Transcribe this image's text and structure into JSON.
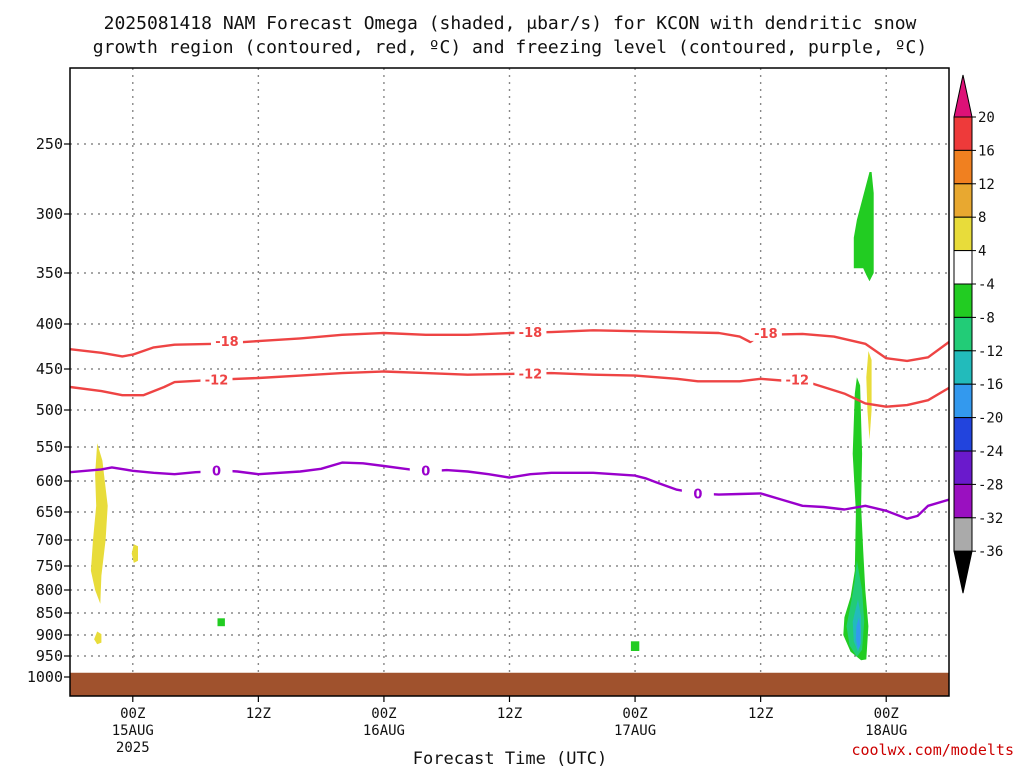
{
  "title": {
    "line1": "2025081418 NAM Forecast Omega (shaded, μbar/s) for KCON with dendritic snow",
    "line2": "growth region (contoured, red, ºC) and freezing level (contoured, purple, ºC)"
  },
  "credit": "coolwx.com/modelts",
  "colors": {
    "dgz": "#ee4444",
    "freezing": "#9900cc",
    "ground": "#a0522d",
    "grid": "#888888"
  },
  "chart_data": {
    "type": "heatmap",
    "xlabel": "Forecast Time (UTC)",
    "x_unit": "hours after 2025081418",
    "xlim": [
      0,
      84
    ],
    "y_axis": "pressure (hPa), decreasing upward",
    "ylim": [
      1000,
      200
    ],
    "y_ticks": [
      250,
      300,
      350,
      400,
      450,
      500,
      550,
      600,
      650,
      700,
      750,
      800,
      850,
      900,
      950,
      1000
    ],
    "x_ticks": [
      {
        "hour": 6,
        "label": "00Z",
        "date": "15AUG",
        "year": "2025"
      },
      {
        "hour": 18,
        "label": "12Z",
        "date": "",
        "year": ""
      },
      {
        "hour": 30,
        "label": "00Z",
        "date": "16AUG",
        "year": ""
      },
      {
        "hour": 42,
        "label": "12Z",
        "date": "",
        "year": ""
      },
      {
        "hour": 54,
        "label": "00Z",
        "date": "17AUG",
        "year": ""
      },
      {
        "hour": 66,
        "label": "12Z",
        "date": "",
        "year": ""
      },
      {
        "hour": 78,
        "label": "00Z",
        "date": "18AUG",
        "year": ""
      }
    ],
    "colorbar": {
      "labels": [
        "20",
        "16",
        "12",
        "8",
        "4",
        "-4",
        "-8",
        "-12",
        "-16",
        "-20",
        "-24",
        "-28",
        "-32",
        "-36"
      ],
      "bins": [
        {
          "color": "#ee3a3a"
        },
        {
          "color": "#f08020"
        },
        {
          "color": "#e8a830"
        },
        {
          "color": "#e8dc3a"
        },
        {
          "color": "#ffffff"
        },
        {
          "color": "#22cc22"
        },
        {
          "color": "#22cc77"
        },
        {
          "color": "#22bbbb"
        },
        {
          "color": "#3399ee"
        },
        {
          "color": "#2244dd"
        },
        {
          "color": "#6a1acc"
        },
        {
          "color": "#9a10c0"
        },
        {
          "color": "#aaaaaa"
        }
      ],
      "top_arrow": "#dd1177",
      "bottom_arrow": "#000000"
    },
    "contours": [
      {
        "label": "-18",
        "color": "#ee4444",
        "points": [
          [
            0,
            428
          ],
          [
            3,
            432
          ],
          [
            5,
            436
          ],
          [
            6,
            434
          ],
          [
            8,
            426
          ],
          [
            10,
            423
          ],
          [
            14,
            422
          ],
          [
            18,
            419
          ],
          [
            22,
            416
          ],
          [
            26,
            412
          ],
          [
            30,
            410
          ],
          [
            34,
            412
          ],
          [
            38,
            412
          ],
          [
            42,
            410
          ],
          [
            46,
            409
          ],
          [
            50,
            407
          ],
          [
            54,
            408
          ],
          [
            58,
            409
          ],
          [
            62,
            410
          ],
          [
            64,
            414
          ],
          [
            65,
            420
          ],
          [
            66,
            412
          ],
          [
            70,
            411
          ],
          [
            73,
            414
          ],
          [
            76,
            422
          ],
          [
            78,
            438
          ],
          [
            80,
            441
          ],
          [
            82,
            437
          ],
          [
            84,
            420
          ]
        ],
        "label_at": [
          [
            15,
            420
          ],
          [
            44,
            410
          ],
          [
            66.5,
            411
          ]
        ]
      },
      {
        "label": "-12",
        "color": "#ee4444",
        "points": [
          [
            0,
            472
          ],
          [
            3,
            477
          ],
          [
            5,
            482
          ],
          [
            7,
            482
          ],
          [
            9,
            472
          ],
          [
            10,
            466
          ],
          [
            14,
            463
          ],
          [
            18,
            461
          ],
          [
            22,
            458
          ],
          [
            26,
            455
          ],
          [
            30,
            453
          ],
          [
            34,
            455
          ],
          [
            38,
            457
          ],
          [
            42,
            456
          ],
          [
            46,
            455
          ],
          [
            50,
            457
          ],
          [
            54,
            458
          ],
          [
            58,
            462
          ],
          [
            60,
            465
          ],
          [
            62,
            465
          ],
          [
            64,
            465
          ],
          [
            66,
            462
          ],
          [
            68,
            464
          ],
          [
            70,
            464
          ],
          [
            72,
            472
          ],
          [
            74,
            480
          ],
          [
            76,
            492
          ],
          [
            78,
            496
          ],
          [
            80,
            494
          ],
          [
            82,
            488
          ],
          [
            84,
            473
          ]
        ],
        "label_at": [
          [
            14,
            464
          ],
          [
            44,
            457
          ],
          [
            69.5,
            464
          ]
        ]
      },
      {
        "label": "0",
        "color": "#9900cc",
        "points": [
          [
            0,
            587
          ],
          [
            3,
            583
          ],
          [
            4,
            580
          ],
          [
            6,
            585
          ],
          [
            8,
            588
          ],
          [
            10,
            590
          ],
          [
            12,
            587
          ],
          [
            15,
            585
          ],
          [
            16,
            586
          ],
          [
            18,
            590
          ],
          [
            22,
            586
          ],
          [
            24,
            582
          ],
          [
            26,
            573
          ],
          [
            28,
            574
          ],
          [
            30,
            578
          ],
          [
            32,
            582
          ],
          [
            34,
            586
          ],
          [
            36,
            584
          ],
          [
            38,
            586
          ],
          [
            40,
            590
          ],
          [
            42,
            595
          ],
          [
            44,
            590
          ],
          [
            46,
            588
          ],
          [
            50,
            588
          ],
          [
            52,
            590
          ],
          [
            54,
            592
          ],
          [
            55,
            596
          ],
          [
            56,
            602
          ],
          [
            58,
            614
          ],
          [
            60,
            620
          ],
          [
            62,
            622
          ],
          [
            64,
            621
          ],
          [
            66,
            620
          ],
          [
            68,
            630
          ],
          [
            70,
            640
          ],
          [
            72,
            642
          ],
          [
            74,
            646
          ],
          [
            76,
            640
          ],
          [
            78,
            648
          ],
          [
            80,
            662
          ],
          [
            81,
            657
          ],
          [
            82,
            640
          ],
          [
            84,
            630
          ]
        ],
        "label_at": [
          [
            14,
            586
          ],
          [
            34,
            586
          ],
          [
            60,
            622
          ]
        ]
      }
    ],
    "omega_regions": [
      {
        "name": "yellow-plume-15aug",
        "color": "#e8dc3a",
        "points": [
          [
            2.6,
            545
          ],
          [
            3.1,
            570
          ],
          [
            3.6,
            640
          ],
          [
            3.4,
            700
          ],
          [
            3.0,
            770
          ],
          [
            2.9,
            830
          ],
          [
            2.4,
            800
          ],
          [
            2.0,
            760
          ],
          [
            2.2,
            700
          ],
          [
            2.5,
            640
          ],
          [
            2.4,
            590
          ]
        ]
      },
      {
        "name": "yellow-blob-a",
        "color": "#e8dc3a",
        "points": [
          [
            2.6,
            892
          ],
          [
            3.0,
            898
          ],
          [
            3.0,
            918
          ],
          [
            2.6,
            922
          ],
          [
            2.3,
            910
          ]
        ]
      },
      {
        "name": "yellow-blob-b",
        "color": "#e8dc3a",
        "points": [
          [
            6.1,
            708
          ],
          [
            6.5,
            712
          ],
          [
            6.5,
            740
          ],
          [
            6.1,
            744
          ],
          [
            5.9,
            726
          ]
        ]
      },
      {
        "name": "green-square",
        "color": "#22cc22",
        "points": [
          [
            14.1,
            862
          ],
          [
            14.8,
            862
          ],
          [
            14.8,
            880
          ],
          [
            14.1,
            880
          ]
        ]
      },
      {
        "name": "green-dot",
        "color": "#22cc22",
        "points": [
          [
            53.6,
            915
          ],
          [
            54.4,
            915
          ],
          [
            54.4,
            938
          ],
          [
            53.6,
            938
          ]
        ]
      },
      {
        "name": "green-upper",
        "color": "#22cc22",
        "points": [
          [
            76.4,
            270
          ],
          [
            76.6,
            270
          ],
          [
            76.8,
            285
          ],
          [
            76.8,
            350
          ],
          [
            76.4,
            358
          ],
          [
            76.1,
            352
          ],
          [
            75.8,
            346
          ],
          [
            74.9,
            346
          ],
          [
            74.9,
            320
          ],
          [
            75.2,
            305
          ]
        ]
      },
      {
        "name": "yellow-streak",
        "color": "#e8dc3a",
        "points": [
          [
            76.3,
            430
          ],
          [
            76.6,
            440
          ],
          [
            76.6,
            500
          ],
          [
            76.4,
            540
          ],
          [
            76.2,
            500
          ],
          [
            76.1,
            460
          ]
        ]
      },
      {
        "name": "green-column",
        "color": "#22cc22",
        "points": [
          [
            75.2,
            460
          ],
          [
            75.5,
            470
          ],
          [
            75.7,
            560
          ],
          [
            75.6,
            640
          ],
          [
            75.8,
            720
          ],
          [
            76.0,
            800
          ],
          [
            76.3,
            880
          ],
          [
            76.1,
            958
          ],
          [
            75.6,
            960
          ],
          [
            74.6,
            940
          ],
          [
            73.9,
            900
          ],
          [
            74.0,
            860
          ],
          [
            74.6,
            815
          ],
          [
            75.0,
            760
          ],
          [
            75.1,
            650
          ],
          [
            74.8,
            560
          ],
          [
            75.0,
            480
          ]
        ]
      },
      {
        "name": "teal-core",
        "color": "#22cc77",
        "points": [
          [
            75.2,
            740
          ],
          [
            75.7,
            800
          ],
          [
            75.9,
            870
          ],
          [
            75.7,
            935
          ],
          [
            75.2,
            952
          ],
          [
            74.5,
            925
          ],
          [
            74.2,
            880
          ],
          [
            74.7,
            820
          ],
          [
            75.0,
            780
          ]
        ]
      },
      {
        "name": "cyan-core",
        "color": "#22bbbb",
        "points": [
          [
            75.3,
            820
          ],
          [
            75.6,
            860
          ],
          [
            75.6,
            920
          ],
          [
            75.3,
            940
          ],
          [
            74.9,
            915
          ],
          [
            74.8,
            870
          ]
        ]
      },
      {
        "name": "blue-core",
        "color": "#3399ee",
        "points": [
          [
            75.4,
            860
          ],
          [
            75.55,
            890
          ],
          [
            75.5,
            925
          ],
          [
            75.3,
            935
          ],
          [
            75.1,
            910
          ],
          [
            75.15,
            880
          ]
        ]
      }
    ],
    "ground": {
      "color": "#a0522d",
      "top_hPa": [
        [
          0,
          990
        ],
        [
          84,
          990
        ]
      ]
    }
  }
}
